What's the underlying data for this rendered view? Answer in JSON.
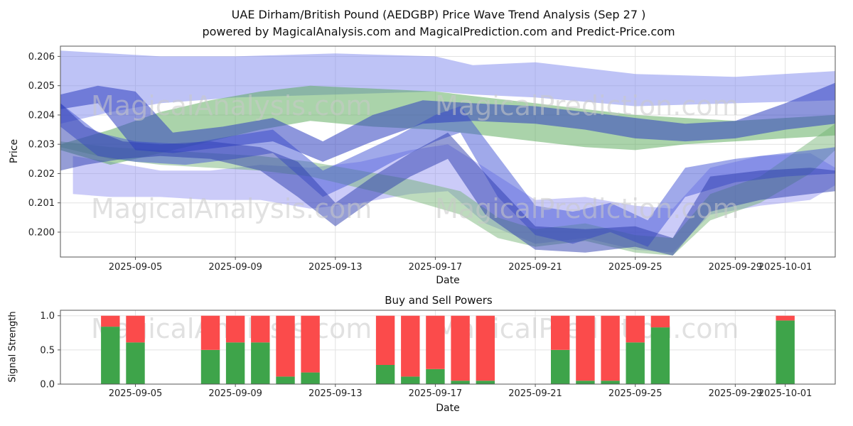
{
  "figure": {
    "title_line1": "UAE Dirham/British Pound (AEDGBP) Price Wave Trend Analysis (Sep 27 )",
    "title_line2": "powered by MagicalAnalysis.com and MagicalPrediction.com and Predict-Price.com"
  },
  "watermarks": {
    "left": "MagicalAnalysis.com",
    "right": "MagicalPrediction.com"
  },
  "chart_data": [
    {
      "type": "area",
      "title": "UAE Dirham/British Pound (AEDGBP) Price Wave Trend Analysis (Sep 27 )",
      "subtitle": "powered by MagicalAnalysis.com and MagicalPrediction.com and Predict-Price.com",
      "xlabel": "Date",
      "ylabel": "Price",
      "x_start": "2025-09-02",
      "xlim_days": [
        0,
        31
      ],
      "ylim": [
        0.19915,
        0.20635
      ],
      "yticks": [
        "0.200",
        "0.201",
        "0.202",
        "0.203",
        "0.204",
        "0.205",
        "0.206"
      ],
      "ytick_values": [
        0.2,
        0.201,
        0.202,
        0.203,
        0.204,
        0.205,
        0.206
      ],
      "xticks": [
        "2025-09-05",
        "2025-09-09",
        "2025-09-13",
        "2025-09-17",
        "2025-09-21",
        "2025-09-25",
        "2025-09-29",
        "2025-10-01"
      ],
      "grid": true,
      "legend": "none",
      "bands": [
        {
          "name": "upper-forecast-band-light-purple",
          "color": "#7e88ee",
          "opacity": 0.5,
          "x": [
            0,
            2,
            4,
            7,
            11,
            15,
            16.5,
            19,
            23,
            27,
            31
          ],
          "upper": [
            0.2062,
            0.2061,
            0.206,
            0.206,
            0.2061,
            0.206,
            0.2057,
            0.2058,
            0.2054,
            0.2053,
            0.2055
          ],
          "lower": [
            0.2037,
            0.2041,
            0.2044,
            0.2046,
            0.2047,
            0.2048,
            0.2047,
            0.2046,
            0.2043,
            0.2044,
            0.2045
          ]
        },
        {
          "name": "lower-forecast-band-light-purple",
          "color": "#8c8cf0",
          "opacity": 0.45,
          "x": [
            0.5,
            2,
            4,
            6,
            8,
            10,
            12,
            14,
            15.5,
            17,
            19,
            21,
            23,
            24.5,
            26,
            28,
            30,
            31
          ],
          "upper": [
            0.2026,
            0.2024,
            0.2021,
            0.2021,
            0.2023,
            0.2022,
            0.2024,
            0.2028,
            0.203,
            0.2022,
            0.2011,
            0.2012,
            0.2009,
            0.2008,
            0.2022,
            0.2026,
            0.2027,
            0.2022
          ],
          "lower": [
            0.2013,
            0.2012,
            0.2012,
            0.2011,
            0.2011,
            0.2008,
            0.201,
            0.2013,
            0.2014,
            0.2003,
            0.1996,
            0.1998,
            0.1994,
            0.1993,
            0.2006,
            0.2009,
            0.2011,
            0.2016
          ]
        },
        {
          "name": "upper-trend-band-green",
          "color": "#55a855",
          "opacity": 0.5,
          "x": [
            0,
            2,
            4,
            6,
            8,
            10,
            12.5,
            15,
            17,
            19,
            21,
            23,
            25,
            27,
            29,
            31
          ],
          "upper": [
            0.203,
            0.2035,
            0.2041,
            0.2045,
            0.2048,
            0.205,
            0.2049,
            0.2048,
            0.2046,
            0.2044,
            0.2042,
            0.204,
            0.2039,
            0.2038,
            0.2039,
            0.204
          ],
          "lower": [
            0.2028,
            0.2023,
            0.2027,
            0.2031,
            0.2035,
            0.2038,
            0.2036,
            0.2035,
            0.2033,
            0.2031,
            0.2029,
            0.2028,
            0.203,
            0.2031,
            0.2032,
            0.2033
          ]
        },
        {
          "name": "lower-trend-band-green",
          "color": "#6db06d",
          "opacity": 0.45,
          "x": [
            0,
            2,
            4,
            6,
            8,
            10,
            12,
            14,
            16,
            17.5,
            19,
            21,
            23,
            24.5,
            26,
            28,
            30,
            31
          ],
          "upper": [
            0.2031,
            0.2029,
            0.2028,
            0.2027,
            0.2026,
            0.2024,
            0.2021,
            0.2018,
            0.2014,
            0.2005,
            0.2001,
            0.2003,
            0.1999,
            0.1998,
            0.2013,
            0.2019,
            0.2031,
            0.2037
          ],
          "lower": [
            0.2029,
            0.2025,
            0.2023,
            0.2022,
            0.2021,
            0.2019,
            0.2015,
            0.2011,
            0.2006,
            0.1998,
            0.1995,
            0.1997,
            0.1993,
            0.1992,
            0.2004,
            0.201,
            0.202,
            0.2028
          ]
        },
        {
          "name": "mid-wave-band-blue",
          "color": "#4254d6",
          "opacity": 0.5,
          "x": [
            0,
            1.5,
            3,
            5,
            7,
            8.5,
            10.5,
            12,
            13.5,
            15,
            16,
            17.5,
            19,
            20.5,
            22,
            23.5,
            25,
            27,
            29,
            31
          ],
          "upper": [
            0.2044,
            0.2034,
            0.2031,
            0.203,
            0.2033,
            0.2035,
            0.2021,
            0.2027,
            0.2033,
            0.204,
            0.2043,
            0.2026,
            0.2009,
            0.2007,
            0.201,
            0.2004,
            0.2022,
            0.2025,
            0.2027,
            0.2029
          ],
          "lower": [
            0.2036,
            0.2026,
            0.2024,
            0.2023,
            0.2025,
            0.2027,
            0.2012,
            0.2018,
            0.2025,
            0.2031,
            0.2034,
            0.2012,
            0.1999,
            0.1996,
            0.2,
            0.1995,
            0.2012,
            0.2017,
            0.2019,
            0.202
          ]
        },
        {
          "name": "lower-wave-band-dark-blue",
          "color": "#2b3cae",
          "opacity": 0.5,
          "x": [
            0,
            1,
            2.5,
            4,
            6,
            8,
            9.5,
            11,
            12.5,
            14,
            15.5,
            17,
            19,
            21,
            23,
            24.5,
            26,
            28,
            30,
            31
          ],
          "upper": [
            0.2044,
            0.2036,
            0.2031,
            0.203,
            0.2031,
            0.2029,
            0.2024,
            0.201,
            0.2019,
            0.2027,
            0.2034,
            0.202,
            0.2002,
            0.2001,
            0.2002,
            0.1998,
            0.2019,
            0.2021,
            0.2022,
            0.2021
          ],
          "lower": [
            0.2021,
            0.2023,
            0.2025,
            0.2026,
            0.2025,
            0.2021,
            0.2012,
            0.2002,
            0.2011,
            0.2019,
            0.2025,
            0.2006,
            0.1994,
            0.1993,
            0.1995,
            0.1992,
            0.2007,
            0.2011,
            0.2013,
            0.2014
          ]
        },
        {
          "name": "upper-wave-band-dark-blue",
          "color": "#3040c0",
          "opacity": 0.55,
          "x": [
            0,
            1.5,
            3,
            4.5,
            6.5,
            8.5,
            10.5,
            12.5,
            14.5,
            16.5,
            19,
            21,
            23,
            25,
            27,
            29,
            31
          ],
          "upper": [
            0.2047,
            0.205,
            0.2048,
            0.2034,
            0.2036,
            0.2039,
            0.2031,
            0.204,
            0.2045,
            0.2044,
            0.2043,
            0.2041,
            0.2039,
            0.2037,
            0.2038,
            0.2044,
            0.2051
          ],
          "lower": [
            0.2042,
            0.2044,
            0.2028,
            0.2027,
            0.2029,
            0.2031,
            0.2024,
            0.2031,
            0.2037,
            0.2038,
            0.2037,
            0.2035,
            0.2032,
            0.2031,
            0.2032,
            0.2035,
            0.2037
          ]
        }
      ]
    },
    {
      "type": "bar",
      "title": "Buy and Sell Powers",
      "xlabel": "Date",
      "ylabel": "Signal Strength",
      "x_start": "2025-09-02",
      "xlim_days": [
        0,
        31
      ],
      "ylim": [
        0,
        1.08
      ],
      "yticks": [
        "0.0",
        "0.5",
        "1.0"
      ],
      "ytick_values": [
        0,
        0.5,
        1.0
      ],
      "xticks": [
        "2025-09-05",
        "2025-09-09",
        "2025-09-13",
        "2025-09-17",
        "2025-09-21",
        "2025-09-25",
        "2025-09-29",
        "2025-10-01"
      ],
      "grid": true,
      "series": [
        {
          "name": "Buy Power",
          "color": "#3ea44a"
        },
        {
          "name": "Sell Power",
          "color": "#fb4b4b"
        }
      ],
      "bars": [
        {
          "date": "2025-09-04",
          "buy": 0.84,
          "sell": 0.16
        },
        {
          "date": "2025-09-05",
          "buy": 0.61,
          "sell": 0.39
        },
        {
          "date": "2025-09-08",
          "buy": 0.5,
          "sell": 0.5
        },
        {
          "date": "2025-09-09",
          "buy": 0.61,
          "sell": 0.39
        },
        {
          "date": "2025-09-10",
          "buy": 0.61,
          "sell": 0.39
        },
        {
          "date": "2025-09-11",
          "buy": 0.11,
          "sell": 0.89
        },
        {
          "date": "2025-09-12",
          "buy": 0.17,
          "sell": 0.83
        },
        {
          "date": "2025-09-15",
          "buy": 0.28,
          "sell": 0.72
        },
        {
          "date": "2025-09-16",
          "buy": 0.11,
          "sell": 0.89
        },
        {
          "date": "2025-09-17",
          "buy": 0.22,
          "sell": 0.78
        },
        {
          "date": "2025-09-18",
          "buy": 0.05,
          "sell": 0.95
        },
        {
          "date": "2025-09-19",
          "buy": 0.05,
          "sell": 0.95
        },
        {
          "date": "2025-09-22",
          "buy": 0.5,
          "sell": 0.5
        },
        {
          "date": "2025-09-23",
          "buy": 0.05,
          "sell": 0.95
        },
        {
          "date": "2025-09-24",
          "buy": 0.05,
          "sell": 0.95
        },
        {
          "date": "2025-09-25",
          "buy": 0.61,
          "sell": 0.39
        },
        {
          "date": "2025-09-26",
          "buy": 0.83,
          "sell": 0.17
        },
        {
          "date": "2025-10-01",
          "buy": 0.93,
          "sell": 0.07
        }
      ]
    }
  ]
}
